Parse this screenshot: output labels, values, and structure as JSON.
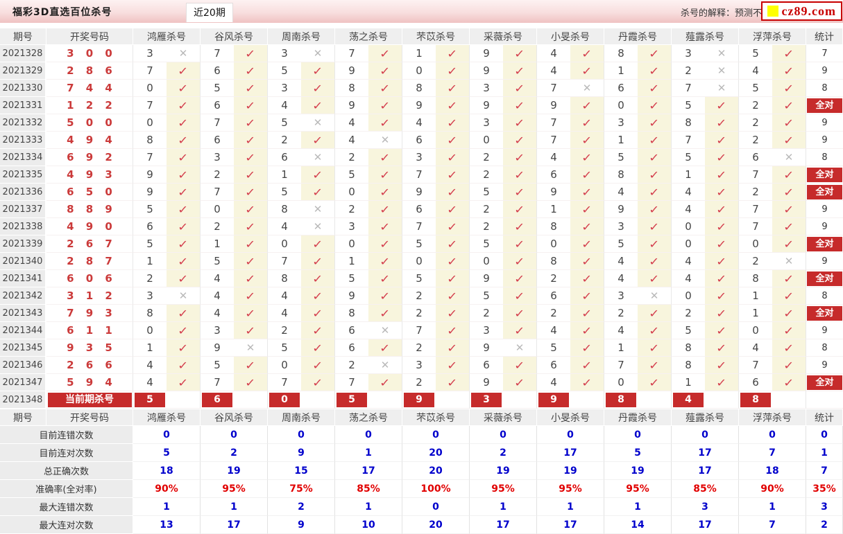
{
  "header": {
    "title": "福彩3D直选百位杀号",
    "tab": "近20期",
    "note": "杀号的解释：预测不会",
    "logo": "cz89.com"
  },
  "columns": [
    "期号",
    "开奖号码",
    "鸿雁杀号",
    "谷风杀号",
    "周南杀号",
    "荡之杀号",
    "芣苡杀号",
    "采薇杀号",
    "小旻杀号",
    "丹霞杀号",
    "薤露杀号",
    "浮萍杀号",
    "统计"
  ],
  "glyphs": {
    "check": "✓",
    "cross": "✕"
  },
  "colors": {
    "badge_red": "#c62b2b",
    "check_red": "#d4414f",
    "cross_gray": "#b9b9b9",
    "code_red": "#cb3a3a",
    "value_blue": "#0000cc",
    "percent_red": "#e10000",
    "mark_bg_yellow": "#f8f5dd",
    "logo_yellow": "#ffff00",
    "logo_red": "#c80000"
  },
  "rows": [
    {
      "period": "2021328",
      "code": "300",
      "kills": [
        3,
        7,
        3,
        7,
        1,
        9,
        4,
        8,
        3,
        5
      ],
      "marks": [
        0,
        1,
        0,
        1,
        1,
        1,
        1,
        1,
        0,
        1
      ],
      "stat": "7"
    },
    {
      "period": "2021329",
      "code": "286",
      "kills": [
        7,
        6,
        5,
        9,
        0,
        9,
        4,
        1,
        2,
        4
      ],
      "marks": [
        1,
        1,
        1,
        1,
        1,
        1,
        1,
        1,
        0,
        1
      ],
      "stat": "9"
    },
    {
      "period": "2021330",
      "code": "744",
      "kills": [
        0,
        5,
        3,
        8,
        8,
        3,
        7,
        6,
        7,
        5
      ],
      "marks": [
        1,
        1,
        1,
        1,
        1,
        1,
        0,
        1,
        0,
        1
      ],
      "stat": "8"
    },
    {
      "period": "2021331",
      "code": "122",
      "kills": [
        7,
        6,
        4,
        9,
        9,
        9,
        9,
        0,
        5,
        2
      ],
      "marks": [
        1,
        1,
        1,
        1,
        1,
        1,
        1,
        1,
        1,
        1
      ],
      "stat": "全对"
    },
    {
      "period": "2021332",
      "code": "500",
      "kills": [
        0,
        7,
        5,
        4,
        4,
        3,
        7,
        3,
        8,
        2
      ],
      "marks": [
        1,
        1,
        0,
        1,
        1,
        1,
        1,
        1,
        1,
        1
      ],
      "stat": "9"
    },
    {
      "period": "2021333",
      "code": "494",
      "kills": [
        8,
        6,
        2,
        4,
        6,
        0,
        7,
        1,
        7,
        2
      ],
      "marks": [
        1,
        1,
        1,
        0,
        1,
        1,
        1,
        1,
        1,
        1
      ],
      "stat": "9"
    },
    {
      "period": "2021334",
      "code": "692",
      "kills": [
        7,
        3,
        6,
        2,
        3,
        2,
        4,
        5,
        5,
        6
      ],
      "marks": [
        1,
        1,
        0,
        1,
        1,
        1,
        1,
        1,
        1,
        0
      ],
      "stat": "8"
    },
    {
      "period": "2021335",
      "code": "493",
      "kills": [
        9,
        2,
        1,
        5,
        7,
        2,
        6,
        8,
        1,
        7
      ],
      "marks": [
        1,
        1,
        1,
        1,
        1,
        1,
        1,
        1,
        1,
        1
      ],
      "stat": "全对"
    },
    {
      "period": "2021336",
      "code": "650",
      "kills": [
        9,
        7,
        5,
        0,
        9,
        5,
        9,
        4,
        4,
        2
      ],
      "marks": [
        1,
        1,
        1,
        1,
        1,
        1,
        1,
        1,
        1,
        1
      ],
      "stat": "全对"
    },
    {
      "period": "2021337",
      "code": "889",
      "kills": [
        5,
        0,
        8,
        2,
        6,
        2,
        1,
        9,
        4,
        7
      ],
      "marks": [
        1,
        1,
        0,
        1,
        1,
        1,
        1,
        1,
        1,
        1
      ],
      "stat": "9"
    },
    {
      "period": "2021338",
      "code": "490",
      "kills": [
        6,
        2,
        4,
        3,
        7,
        2,
        8,
        3,
        0,
        7
      ],
      "marks": [
        1,
        1,
        0,
        1,
        1,
        1,
        1,
        1,
        1,
        1
      ],
      "stat": "9"
    },
    {
      "period": "2021339",
      "code": "267",
      "kills": [
        5,
        1,
        0,
        0,
        5,
        5,
        0,
        5,
        0,
        0
      ],
      "marks": [
        1,
        1,
        1,
        1,
        1,
        1,
        1,
        1,
        1,
        1
      ],
      "stat": "全对"
    },
    {
      "period": "2021340",
      "code": "287",
      "kills": [
        1,
        5,
        7,
        1,
        0,
        0,
        8,
        4,
        4,
        2
      ],
      "marks": [
        1,
        1,
        1,
        1,
        1,
        1,
        1,
        1,
        1,
        0
      ],
      "stat": "9"
    },
    {
      "period": "2021341",
      "code": "606",
      "kills": [
        2,
        4,
        8,
        5,
        5,
        9,
        2,
        4,
        4,
        8
      ],
      "marks": [
        1,
        1,
        1,
        1,
        1,
        1,
        1,
        1,
        1,
        1
      ],
      "stat": "全对"
    },
    {
      "period": "2021342",
      "code": "312",
      "kills": [
        3,
        4,
        4,
        9,
        2,
        5,
        6,
        3,
        0,
        1
      ],
      "marks": [
        0,
        1,
        1,
        1,
        1,
        1,
        1,
        0,
        1,
        1
      ],
      "stat": "8"
    },
    {
      "period": "2021343",
      "code": "793",
      "kills": [
        8,
        4,
        4,
        8,
        2,
        2,
        2,
        2,
        2,
        1
      ],
      "marks": [
        1,
        1,
        1,
        1,
        1,
        1,
        1,
        1,
        1,
        1
      ],
      "stat": "全对"
    },
    {
      "period": "2021344",
      "code": "611",
      "kills": [
        0,
        3,
        2,
        6,
        7,
        3,
        4,
        4,
        5,
        0
      ],
      "marks": [
        1,
        1,
        1,
        0,
        1,
        1,
        1,
        1,
        1,
        1
      ],
      "stat": "9"
    },
    {
      "period": "2021345",
      "code": "935",
      "kills": [
        1,
        9,
        5,
        6,
        2,
        9,
        5,
        1,
        8,
        4
      ],
      "marks": [
        1,
        0,
        1,
        1,
        1,
        0,
        1,
        1,
        1,
        1
      ],
      "stat": "8"
    },
    {
      "period": "2021346",
      "code": "266",
      "kills": [
        4,
        5,
        0,
        2,
        3,
        6,
        6,
        7,
        8,
        7
      ],
      "marks": [
        1,
        1,
        1,
        0,
        1,
        1,
        1,
        1,
        1,
        1
      ],
      "stat": "9"
    },
    {
      "period": "2021347",
      "code": "594",
      "kills": [
        4,
        7,
        7,
        7,
        2,
        9,
        4,
        0,
        1,
        6
      ],
      "marks": [
        1,
        1,
        1,
        1,
        1,
        1,
        1,
        1,
        1,
        1
      ],
      "stat": "全对"
    }
  ],
  "current": {
    "period": "2021348",
    "label": "当前期杀号",
    "kills": [
      5,
      6,
      0,
      5,
      9,
      3,
      9,
      8,
      4,
      8
    ]
  },
  "summary": {
    "rows": [
      {
        "label": "目前连错次数",
        "values": [
          "0",
          "0",
          "0",
          "0",
          "0",
          "0",
          "0",
          "0",
          "0",
          "0",
          "0"
        ],
        "pct": false
      },
      {
        "label": "目前连对次数",
        "values": [
          "5",
          "2",
          "9",
          "1",
          "20",
          "2",
          "17",
          "5",
          "17",
          "7",
          "1"
        ],
        "pct": false
      },
      {
        "label": "总正确次数",
        "values": [
          "18",
          "19",
          "15",
          "17",
          "20",
          "19",
          "19",
          "19",
          "17",
          "18",
          "7"
        ],
        "pct": false
      },
      {
        "label": "准确率(全对率)",
        "values": [
          "90%",
          "95%",
          "75%",
          "85%",
          "100%",
          "95%",
          "95%",
          "95%",
          "85%",
          "90%",
          "35%"
        ],
        "pct": true
      },
      {
        "label": "最大连错次数",
        "values": [
          "1",
          "1",
          "2",
          "1",
          "0",
          "1",
          "1",
          "1",
          "3",
          "1",
          "3"
        ],
        "pct": false
      },
      {
        "label": "最大连对次数",
        "values": [
          "13",
          "17",
          "9",
          "10",
          "20",
          "17",
          "17",
          "14",
          "17",
          "7",
          "2"
        ],
        "pct": false
      }
    ]
  }
}
